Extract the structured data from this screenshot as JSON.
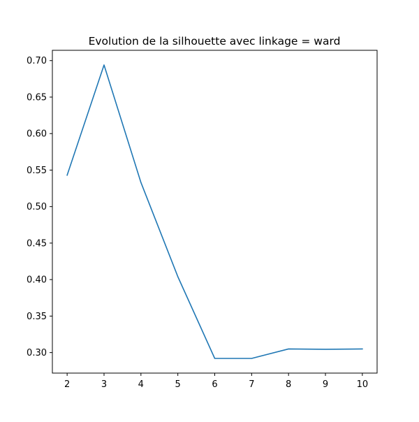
{
  "chart_data": {
    "type": "line",
    "title": "Evolution de la silhouette avec linkage = ward",
    "xlabel": "",
    "ylabel": "",
    "x": [
      2,
      3,
      4,
      5,
      6,
      7,
      8,
      9,
      10
    ],
    "series": [
      {
        "values": [
          0.543,
          0.694,
          0.533,
          0.404,
          0.292,
          0.292,
          0.305,
          0.3045,
          0.305
        ],
        "color": "#1f77b4"
      }
    ],
    "xticks": [
      "2",
      "3",
      "4",
      "5",
      "6",
      "7",
      "8",
      "9",
      "10"
    ],
    "yticks": [
      "0.30",
      "0.35",
      "0.40",
      "0.45",
      "0.50",
      "0.55",
      "0.60",
      "0.65",
      "0.70"
    ],
    "xlim": [
      1.6,
      10.4
    ],
    "ylim": [
      0.2719,
      0.7141
    ],
    "grid": false,
    "legend": false
  }
}
